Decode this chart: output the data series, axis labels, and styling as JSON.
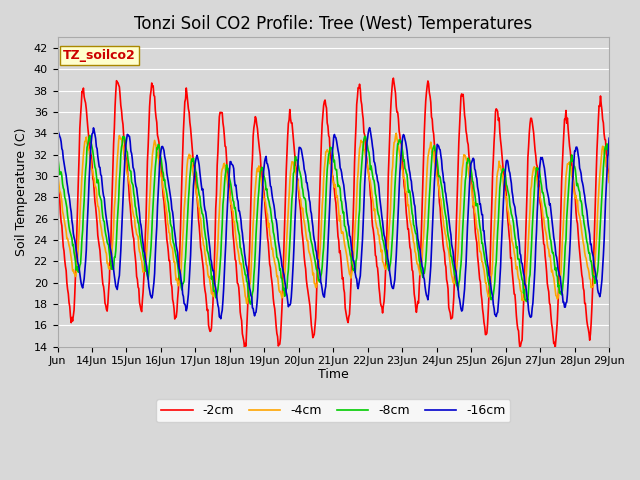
{
  "title": "Tonzi Soil CO2 Profile: Tree (West) Temperatures",
  "ylabel": "Soil Temperature (C)",
  "xlabel": "Time",
  "annotation": "TZ_soilco2",
  "ylim": [
    14,
    43
  ],
  "yticks": [
    14,
    16,
    18,
    20,
    22,
    24,
    26,
    28,
    30,
    32,
    34,
    36,
    38,
    40,
    42
  ],
  "series": [
    {
      "label": "-2cm",
      "color": "#ff0000"
    },
    {
      "label": "-4cm",
      "color": "#ffa500"
    },
    {
      "label": "-8cm",
      "color": "#00cc00"
    },
    {
      "label": "-16cm",
      "color": "#0000cc"
    }
  ],
  "background_color": "#d8d8d8",
  "plot_bg_color": "#d8d8d8",
  "grid_color": "#ffffff",
  "title_fontsize": 12,
  "label_fontsize": 9,
  "tick_fontsize": 8,
  "legend_fontsize": 9,
  "annotation_fontsize": 9,
  "line_width": 1.2
}
